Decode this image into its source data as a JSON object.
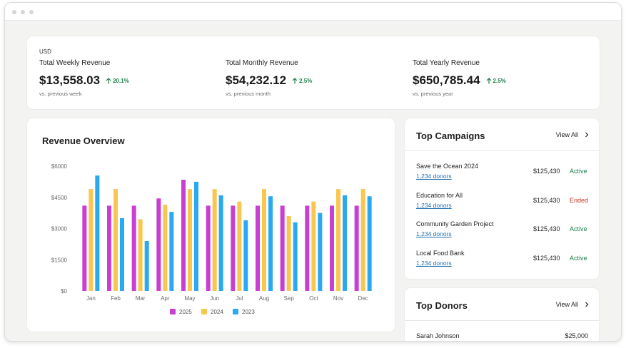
{
  "summary": {
    "currency": "USD",
    "stats": [
      {
        "label": "Total Weekly Revenue",
        "value": "$13,558.03",
        "change": "20.1%",
        "sub": "vs. previous week"
      },
      {
        "label": "Total Monthly Revenue",
        "value": "$54,232.12",
        "change": "2.5%",
        "sub": "vs. previous month"
      },
      {
        "label": "Total Yearly Revenue",
        "value": "$650,785.44",
        "change": "2.5%",
        "sub": "vs. previous year"
      }
    ],
    "positive_color": "#1a7f4b"
  },
  "chart": {
    "title": "Revenue Overview"
  },
  "chart_data": {
    "type": "bar",
    "title": "Revenue Overview",
    "categories": [
      "Jan",
      "Feb",
      "Mar",
      "Apr",
      "May",
      "Jun",
      "Jul",
      "Aug",
      "Sep",
      "Oct",
      "Nov",
      "Dec"
    ],
    "series": [
      {
        "name": "2025",
        "color": "#c93fd1",
        "values": [
          4100,
          4100,
          4100,
          4450,
          5350,
          4100,
          4100,
          4100,
          4100,
          4100,
          4100,
          4100
        ]
      },
      {
        "name": "2024",
        "color": "#f9c74f",
        "values": [
          4900,
          4900,
          3450,
          4150,
          4900,
          4900,
          4300,
          4900,
          3600,
          4300,
          4900,
          4900
        ]
      },
      {
        "name": "2023",
        "color": "#29a9f2",
        "values": [
          5550,
          3500,
          2400,
          3800,
          5250,
          4600,
          3400,
          4550,
          3300,
          3750,
          4600,
          4550
        ]
      }
    ],
    "yticks": [
      "$0",
      "$1500",
      "$3000",
      "$4500",
      "$6000"
    ],
    "ylim": [
      0,
      6000
    ],
    "grid": false,
    "legend": "bottom"
  },
  "campaigns": {
    "title": "Top Campaigns",
    "view_all": "View All",
    "items": [
      {
        "name": "Save the Ocean 2024",
        "donors": "1,234 donors",
        "amount": "$125,430",
        "status": "Active",
        "status_color": "#1a7f4b"
      },
      {
        "name": "Education for All",
        "donors": "1,234 donors",
        "amount": "$125,430",
        "status": "Ended",
        "status_color": "#c0392b"
      },
      {
        "name": "Community Garden Project",
        "donors": "1,234 donors",
        "amount": "$125,430",
        "status": "Active",
        "status_color": "#1a7f4b"
      },
      {
        "name": "Local Food Bank",
        "donors": "1,234 donors",
        "amount": "$125,430",
        "status": "Active",
        "status_color": "#1a7f4b"
      }
    ]
  },
  "donors": {
    "title": "Top Donors",
    "view_all": "View All",
    "items": [
      {
        "name": "Sarah Johnson",
        "amount": "$25,000"
      }
    ]
  }
}
